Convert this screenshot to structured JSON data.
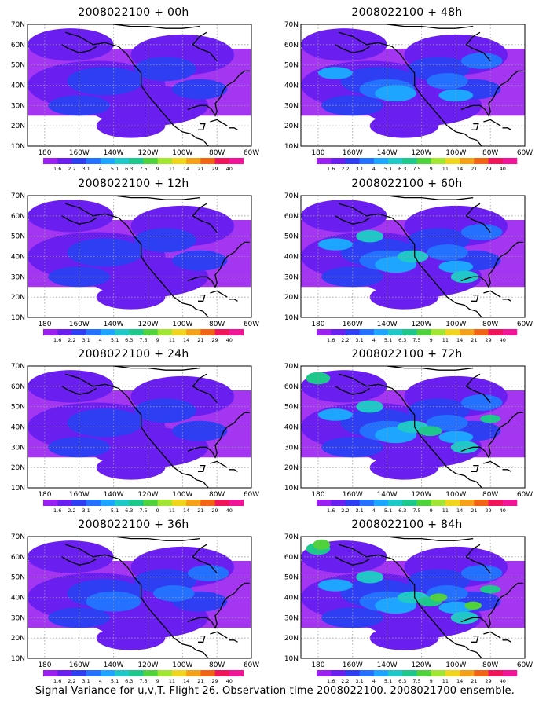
{
  "footer": "Signal Variance for u,v,T. Flight 26. Observation time 2008022100. 2008021700 ensemble.",
  "colorbar": {
    "labels": [
      "1.6",
      "2.2",
      "3.1",
      "4",
      "5.1",
      "6.3",
      "7.5",
      "9",
      "11",
      "14",
      "21",
      "29",
      "40"
    ],
    "colors": [
      "#9a1ff0",
      "#6a1ff0",
      "#2e3ef2",
      "#2470ff",
      "#1ea5ff",
      "#1ec8c8",
      "#1ec88c",
      "#50d23c",
      "#a0e632",
      "#f0d41e",
      "#f5a019",
      "#f06414",
      "#f0145a",
      "#f01496"
    ]
  },
  "axes": {
    "lon_labels": [
      "180",
      "160W",
      "140W",
      "120W",
      "100W",
      "80W",
      "60W"
    ],
    "lat_labels": [
      "70N",
      "60N",
      "50N",
      "40N",
      "30N",
      "20N",
      "10N"
    ]
  },
  "chart_data": [
    {
      "type": "heatmap",
      "title": "2008022100 + 00h",
      "level_ranks": [
        1,
        2
      ]
    },
    {
      "type": "heatmap",
      "title": "2008022100 + 12h",
      "level_ranks": [
        1,
        2
      ]
    },
    {
      "type": "heatmap",
      "title": "2008022100 + 24h",
      "level_ranks": [
        1,
        2
      ]
    },
    {
      "type": "heatmap",
      "title": "2008022100 + 36h",
      "level_ranks": [
        1,
        2,
        3
      ]
    },
    {
      "type": "heatmap",
      "title": "2008022100 + 48h",
      "level_ranks": [
        1,
        2,
        3,
        4
      ]
    },
    {
      "type": "heatmap",
      "title": "2008022100 + 60h",
      "level_ranks": [
        1,
        2,
        3,
        4,
        5
      ]
    },
    {
      "type": "heatmap",
      "title": "2008022100 + 72h",
      "level_ranks": [
        1,
        2,
        3,
        4,
        5,
        6
      ]
    },
    {
      "type": "heatmap",
      "title": "2008022100 + 84h",
      "level_ranks": [
        1,
        2,
        3,
        4,
        5,
        6,
        7
      ]
    }
  ]
}
